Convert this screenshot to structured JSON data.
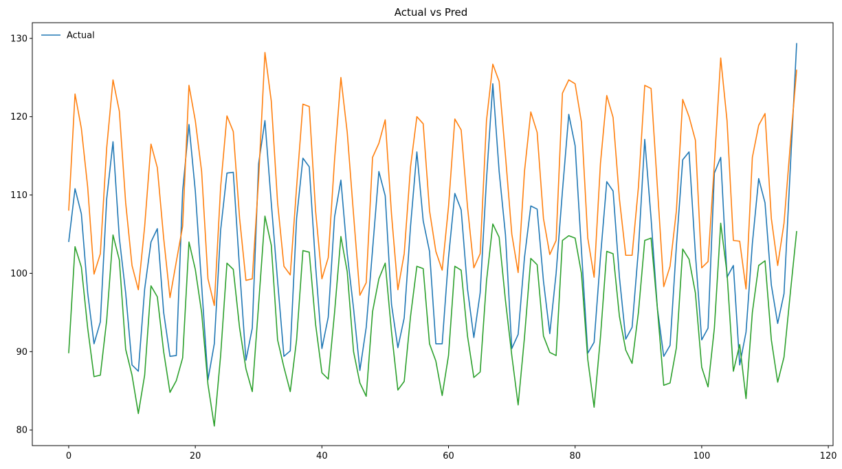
{
  "chart_data": {
    "type": "line",
    "title": "Actual vs Pred",
    "xlabel": "",
    "ylabel": "",
    "xlim": [
      -5.75,
      120.75
    ],
    "ylim": [
      78.0,
      132.0
    ],
    "xticks": [
      0,
      20,
      40,
      60,
      80,
      100,
      120
    ],
    "yticks": [
      80,
      90,
      100,
      110,
      120,
      130
    ],
    "grid": false,
    "legend": {
      "position": "top-left",
      "entries": [
        "Actual"
      ]
    },
    "series": [
      {
        "name": "Actual",
        "color": "#1f77b4",
        "x": [
          0,
          1,
          2,
          3,
          4,
          5,
          6,
          7,
          8,
          9,
          10,
          11,
          12,
          13,
          14,
          15,
          16,
          17,
          18,
          19,
          20,
          21,
          22,
          23,
          24,
          25,
          26,
          27,
          28,
          29,
          30,
          31,
          32,
          33,
          34,
          35,
          36,
          37,
          38,
          39,
          40,
          41,
          42,
          43,
          44,
          45,
          46,
          47,
          48,
          49,
          50,
          51,
          52,
          53,
          54,
          55,
          56,
          57,
          58,
          59,
          60,
          61,
          62,
          63,
          64,
          65,
          66,
          67,
          68,
          69,
          70,
          71,
          72,
          73,
          74,
          75,
          76,
          77,
          78,
          79,
          80,
          81,
          82,
          83,
          84,
          85,
          86,
          87,
          88,
          89,
          90,
          91,
          92,
          93,
          94,
          95,
          96,
          97,
          98,
          99,
          100,
          101,
          102,
          103,
          104,
          105,
          106,
          107,
          108,
          109,
          110,
          111,
          112,
          113,
          114,
          115
        ],
        "values": [
          104.0,
          110.8,
          107.6,
          97.5,
          91.0,
          93.8,
          109.5,
          116.8,
          104.5,
          97.5,
          88.3,
          87.5,
          98.0,
          104.0,
          105.7,
          95.0,
          89.4,
          89.5,
          110.5,
          119.0,
          110.5,
          98.5,
          86.4,
          91.0,
          105.5,
          112.8,
          112.9,
          100.5,
          88.9,
          93.0,
          114.0,
          119.5,
          109.0,
          99.0,
          89.4,
          90.1,
          107.0,
          114.7,
          113.6,
          101.0,
          90.4,
          94.4,
          107.2,
          111.9,
          102.5,
          95.5,
          87.6,
          93.1,
          103.0,
          113.0,
          109.9,
          96.0,
          90.5,
          94.3,
          106.0,
          115.5,
          106.7,
          102.8,
          91.0,
          91.0,
          102.0,
          110.2,
          108.1,
          98.0,
          91.8,
          97.5,
          112.0,
          124.2,
          113.0,
          104.9,
          90.4,
          92.2,
          102.0,
          108.6,
          108.2,
          99.0,
          92.3,
          100.0,
          110.5,
          120.3,
          116.3,
          103.0,
          89.8,
          91.2,
          102.0,
          111.7,
          110.5,
          99.5,
          91.6,
          93.1,
          103.0,
          117.1,
          107.0,
          95.5,
          89.4,
          90.8,
          103.5,
          114.5,
          115.5,
          102.5,
          91.5,
          93.0,
          112.8,
          114.8,
          99.5,
          101.0,
          88.3,
          92.5,
          103.8,
          112.1,
          109.0,
          98.5,
          93.6,
          97.4,
          113.5,
          129.4
        ]
      },
      {
        "name": "",
        "color": "#ff7f0e",
        "x": [
          0,
          1,
          2,
          3,
          4,
          5,
          6,
          7,
          8,
          9,
          10,
          11,
          12,
          13,
          14,
          15,
          16,
          17,
          18,
          19,
          20,
          21,
          22,
          23,
          24,
          25,
          26,
          27,
          28,
          29,
          30,
          31,
          32,
          33,
          34,
          35,
          36,
          37,
          38,
          39,
          40,
          41,
          42,
          43,
          44,
          45,
          46,
          47,
          48,
          49,
          50,
          51,
          52,
          53,
          54,
          55,
          56,
          57,
          58,
          59,
          60,
          61,
          62,
          63,
          64,
          65,
          66,
          67,
          68,
          69,
          70,
          71,
          72,
          73,
          74,
          75,
          76,
          77,
          78,
          79,
          80,
          81,
          82,
          83,
          84,
          85,
          86,
          87,
          88,
          89,
          90,
          91,
          92,
          93,
          94,
          95,
          96,
          97,
          98,
          99,
          100,
          101,
          102,
          103,
          104,
          105,
          106,
          107,
          108,
          109,
          110,
          111,
          112,
          113,
          114,
          115
        ],
        "values": [
          108.0,
          122.9,
          118.5,
          111.0,
          99.9,
          102.5,
          116.0,
          124.7,
          120.7,
          109.0,
          101.0,
          97.9,
          106.0,
          116.5,
          113.5,
          104.5,
          96.9,
          101.5,
          106.0,
          124.0,
          119.5,
          113.0,
          99.3,
          95.9,
          111.0,
          120.1,
          118.1,
          107.0,
          99.1,
          99.3,
          112.0,
          128.2,
          122.0,
          109.0,
          100.9,
          99.8,
          111.0,
          121.6,
          121.3,
          108.0,
          99.3,
          102.0,
          114.5,
          125.0,
          118.0,
          107.5,
          97.2,
          98.8,
          114.8,
          116.6,
          119.6,
          107.5,
          97.9,
          102.5,
          113.6,
          120.0,
          119.1,
          108.0,
          102.8,
          100.4,
          108.5,
          119.7,
          118.3,
          108.5,
          100.7,
          102.5,
          119.5,
          126.7,
          124.5,
          115.0,
          105.0,
          100.1,
          113.0,
          120.6,
          118.0,
          107.0,
          102.4,
          104.2,
          123.0,
          124.7,
          124.2,
          119.3,
          104.5,
          99.5,
          114.0,
          122.7,
          119.9,
          109.5,
          102.3,
          102.3,
          111.0,
          124.0,
          123.6,
          111.0,
          98.3,
          100.9,
          108.0,
          122.2,
          120.0,
          117.0,
          100.7,
          101.5,
          114.0,
          127.5,
          119.5,
          104.2,
          104.1,
          98.0,
          114.8,
          118.9,
          120.4,
          107.0,
          101.0,
          106.4,
          116.5,
          126.0
        ]
      },
      {
        "name": "",
        "color": "#2ca02c",
        "x": [
          0,
          1,
          2,
          3,
          4,
          5,
          6,
          7,
          8,
          9,
          10,
          11,
          12,
          13,
          14,
          15,
          16,
          17,
          18,
          19,
          20,
          21,
          22,
          23,
          24,
          25,
          26,
          27,
          28,
          29,
          30,
          31,
          32,
          33,
          34,
          35,
          36,
          37,
          38,
          39,
          40,
          41,
          42,
          43,
          44,
          45,
          46,
          47,
          48,
          49,
          50,
          51,
          52,
          53,
          54,
          55,
          56,
          57,
          58,
          59,
          60,
          61,
          62,
          63,
          64,
          65,
          66,
          67,
          68,
          69,
          70,
          71,
          72,
          73,
          74,
          75,
          76,
          77,
          78,
          79,
          80,
          81,
          82,
          83,
          84,
          85,
          86,
          87,
          88,
          89,
          90,
          91,
          92,
          93,
          94,
          95,
          96,
          97,
          98,
          99,
          100,
          101,
          102,
          103,
          104,
          105,
          106,
          107,
          108,
          109,
          110,
          111,
          112,
          113,
          114,
          115
        ],
        "values": [
          89.8,
          103.4,
          100.8,
          93.0,
          86.8,
          87.0,
          94.0,
          104.9,
          101.7,
          90.3,
          87.0,
          82.1,
          87.0,
          98.4,
          97.0,
          90.0,
          84.8,
          86.3,
          89.2,
          104.0,
          100.5,
          95.0,
          85.8,
          80.5,
          89.5,
          101.3,
          100.5,
          93.0,
          87.8,
          84.9,
          96.0,
          107.3,
          103.6,
          91.5,
          88.0,
          84.9,
          91.5,
          102.9,
          102.7,
          93.5,
          87.3,
          86.5,
          95.0,
          104.7,
          100.2,
          90.0,
          86.0,
          84.3,
          95.1,
          99.3,
          101.3,
          92.5,
          85.1,
          86.2,
          94.5,
          100.9,
          100.6,
          91.0,
          88.8,
          84.4,
          89.5,
          100.9,
          100.4,
          92.0,
          86.7,
          87.4,
          99.0,
          106.3,
          104.6,
          96.5,
          89.5,
          83.2,
          91.8,
          101.9,
          101.1,
          92.0,
          89.9,
          89.5,
          104.2,
          104.8,
          104.5,
          100.0,
          89.0,
          82.9,
          91.8,
          102.8,
          102.5,
          94.5,
          90.2,
          88.5,
          95.0,
          104.2,
          104.5,
          95.5,
          85.7,
          86.0,
          90.5,
          103.1,
          101.8,
          97.5,
          88.0,
          85.5,
          93.0,
          106.4,
          100.0,
          87.5,
          90.9,
          84.0,
          95.0,
          101.0,
          101.6,
          91.5,
          86.1,
          89.3,
          97.5,
          105.4
        ]
      }
    ]
  }
}
